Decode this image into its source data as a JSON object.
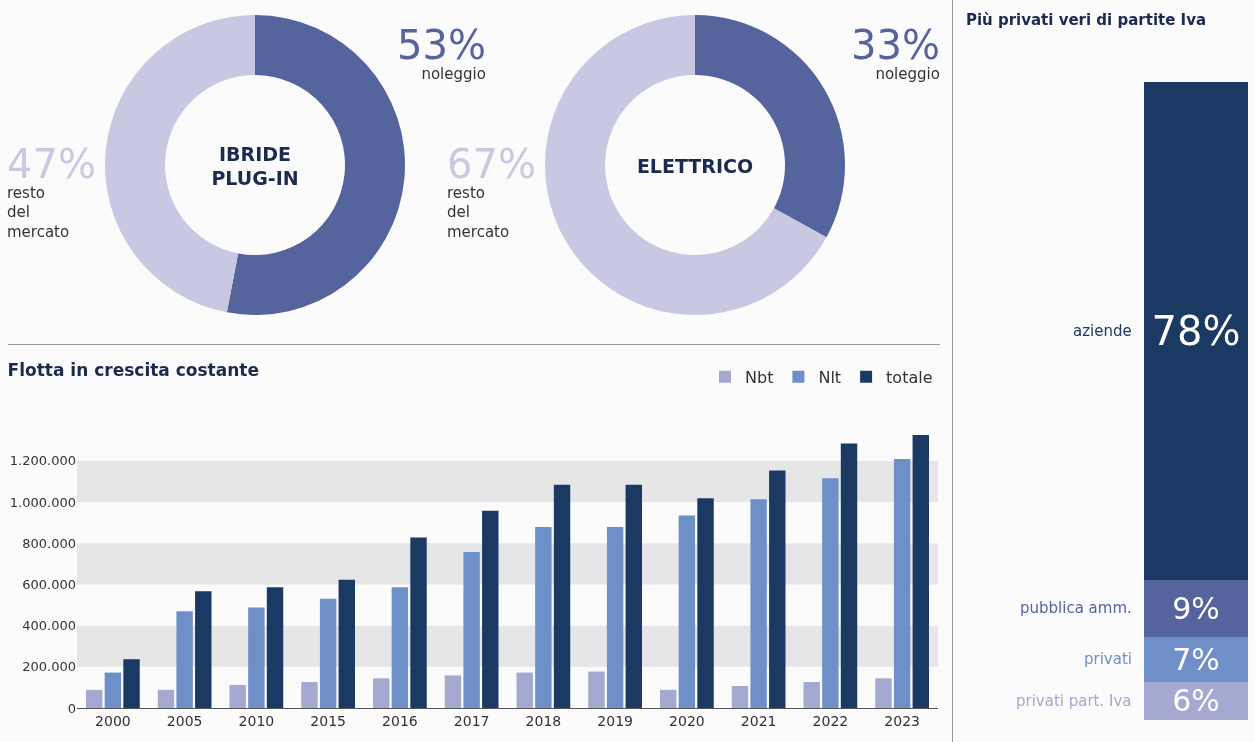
{
  "chart_data": [
    {
      "type": "donut",
      "title": "IBRIDE\nPLUG-IN",
      "categories": [
        "noleggio",
        "resto del mercato"
      ],
      "values": [
        53,
        47
      ],
      "colors": [
        "#56649e",
        "#c8c8e2"
      ],
      "value_labels": [
        "53%",
        "47%"
      ]
    },
    {
      "type": "donut",
      "title": "ELETTRICO",
      "categories": [
        "noleggio",
        "resto del mercato"
      ],
      "values": [
        33,
        67
      ],
      "colors": [
        "#56649e",
        "#c8c8e2"
      ],
      "value_labels": [
        "33%",
        "67%"
      ]
    },
    {
      "type": "bar",
      "title": "Flotta in crescita costante",
      "categories": [
        "2000",
        "2005",
        "2010",
        "2015",
        "2016",
        "2017",
        "2018",
        "2019",
        "2020",
        "2021",
        "2022",
        "2023"
      ],
      "series": [
        {
          "name": "Nbt",
          "color": "#a3a9d0",
          "values": [
            88000,
            88000,
            112000,
            126000,
            144000,
            158000,
            172000,
            177000,
            88000,
            107000,
            126000,
            144000
          ]
        },
        {
          "name": "Nlt",
          "color": "#6e8fc7",
          "values": [
            172000,
            470000,
            488000,
            530000,
            586000,
            758000,
            879000,
            879000,
            935000,
            1014000,
            1116000,
            1209000
          ]
        },
        {
          "name": "totale",
          "color": "#1b3a63",
          "values": [
            237000,
            567000,
            586000,
            623000,
            828000,
            958000,
            1084000,
            1084000,
            1019000,
            1153000,
            1284000,
            1326000
          ]
        }
      ],
      "ylim": [
        0,
        1350000
      ],
      "yticks": [
        0,
        {
          "value": 200000,
          "label": "200.000"
        },
        {
          "value": 400000,
          "label": "400.000"
        },
        {
          "value": 600000,
          "label": "600.000"
        },
        {
          "value": 800000,
          "label": "800.000"
        },
        {
          "value": 1000000,
          "label": "1.000.000"
        },
        {
          "value": 1200000,
          "label": "1.200.000"
        }
      ],
      "bands": [
        {
          "axis": "y",
          "from": 200000,
          "to": 400000,
          "color": "#e6e6e8"
        },
        {
          "axis": "y",
          "from": 600000,
          "to": 800000,
          "color": "#e6e6e8"
        },
        {
          "axis": "y",
          "from": 1000000,
          "to": 1200000,
          "color": "#e6e6e8"
        }
      ],
      "legend": "top right"
    },
    {
      "type": "bar",
      "stacked": true,
      "title": "Più privati veri di partite Iva",
      "categories": [
        null
      ],
      "series": [
        {
          "name": "privati part. Iva",
          "color": "#a3a9d0",
          "values": [
            6
          ],
          "value_labels": [
            "6%"
          ]
        },
        {
          "name": "privati",
          "color": "#6e8fc7",
          "values": [
            7
          ],
          "value_labels": [
            "7%"
          ]
        },
        {
          "name": "pubblica amm.",
          "color": "#56649e",
          "values": [
            9
          ],
          "value_labels": [
            "9%"
          ]
        },
        {
          "name": "aziende",
          "color": "#1b3a63",
          "values": [
            78
          ],
          "value_labels": [
            "78%"
          ]
        }
      ]
    }
  ]
}
